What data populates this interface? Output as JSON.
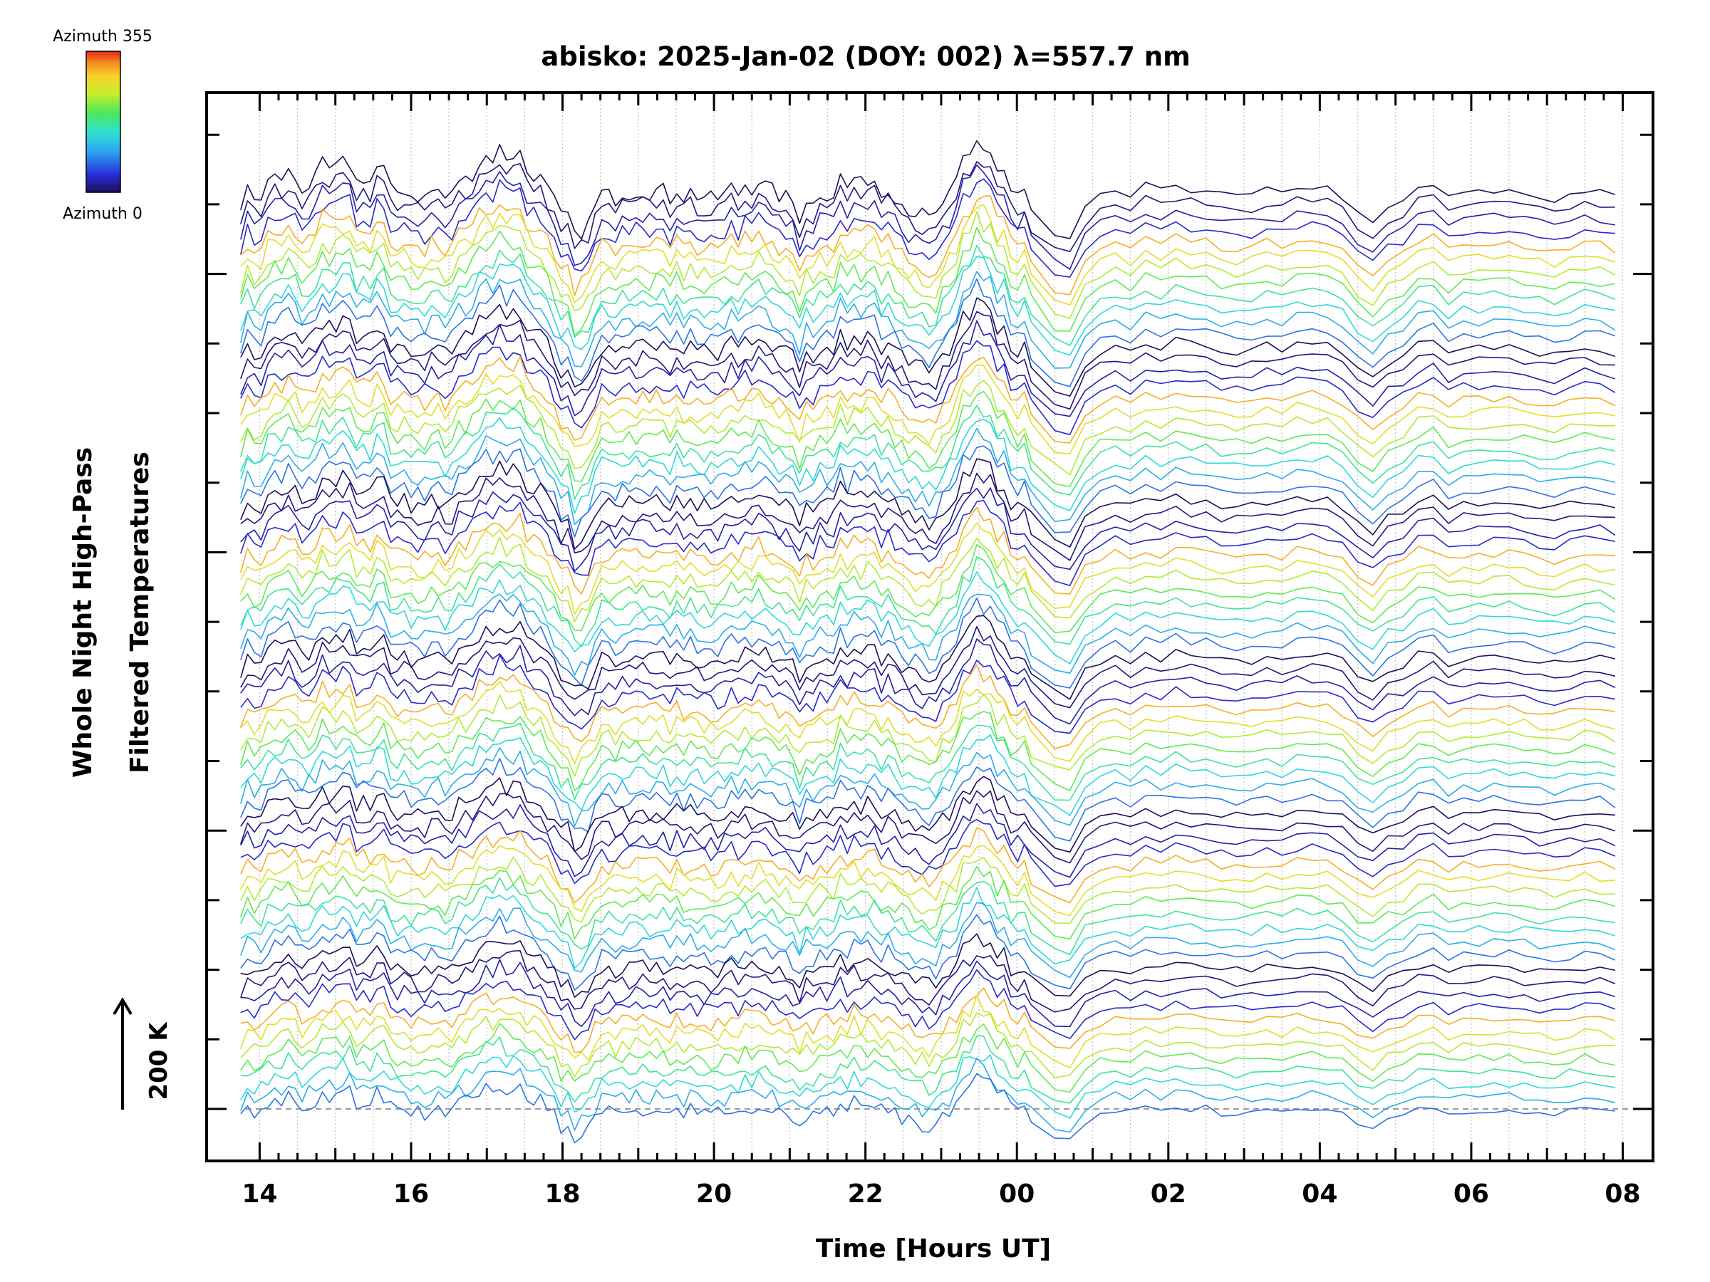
{
  "chart_data": {
    "type": "line",
    "title": "abisko: 2025-Jan-02 (DOY: 002) λ=557.7 nm",
    "xlabel": "Time [Hours UT]",
    "ylabel_line1": "Whole Night High-Pass",
    "ylabel_line2": "Filtered Temperatures",
    "x_tick_labels": [
      "14",
      "16",
      "18",
      "20",
      "22",
      "00",
      "02",
      "04",
      "06",
      "08"
    ],
    "x_range_hours": [
      13.3,
      32.4
    ],
    "x_data_range_hours": [
      13.75,
      31.9
    ],
    "colorbar": {
      "top_label": "Azimuth 355",
      "bottom_label": "Azimuth 0",
      "colormap": "rainbow (dark blue → cyan → green → yellow → orange → red)"
    },
    "scale_bar_label": "200 K",
    "grid": "vertical dotted lines every 30 minutes",
    "series_count": 72,
    "trace_groups": 6,
    "notes": "Stacked high-pass filtered temperature traces, one per azimuth, vertically offset and colored by azimuth."
  }
}
